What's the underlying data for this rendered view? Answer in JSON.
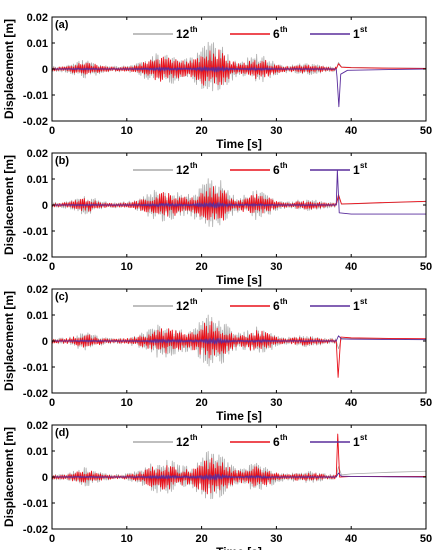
{
  "chart_data": [
    {
      "type": "line",
      "panel_label": "(a)",
      "xlabel": "Time [s]",
      "ylabel": "Displacement [m]",
      "xlim": [
        0,
        50
      ],
      "ylim": [
        -0.02,
        0.02
      ],
      "xticks": [
        "0",
        "10",
        "20",
        "30",
        "40",
        "50"
      ],
      "yticks": [
        "0.02",
        "0.01",
        "0",
        "-0.01",
        "-0.02"
      ],
      "legend_placement": "top-center",
      "series": [
        {
          "name": "12",
          "sup": "th",
          "color": "#aaaaaa",
          "peak_amplitude": 0.0105,
          "post_event": [
            [
              38.0,
              0.0
            ],
            [
              38.3,
              0.0025
            ],
            [
              38.7,
              0.0008
            ],
            [
              40,
              0.0006
            ],
            [
              45,
              0.0004
            ],
            [
              50,
              0.0003
            ]
          ]
        },
        {
          "name": "6",
          "sup": "th",
          "color": "#e8101a",
          "peak_amplitude": 0.0075,
          "post_event": [
            [
              38.0,
              0.0
            ],
            [
              38.3,
              0.002
            ],
            [
              38.7,
              0.0007
            ],
            [
              40,
              0.0005
            ],
            [
              45,
              0.0003
            ],
            [
              50,
              0.0002
            ]
          ]
        },
        {
          "name": "1",
          "sup": "st",
          "color": "#5a2d9c",
          "peak_amplitude": 0.0012,
          "post_event": [
            [
              38.0,
              0.0
            ],
            [
              38.1,
              -0.003
            ],
            [
              38.35,
              -0.0145
            ],
            [
              38.6,
              -0.002
            ],
            [
              39.5,
              -0.0005
            ],
            [
              45,
              -0.0002
            ],
            [
              50,
              0.0
            ]
          ]
        }
      ]
    },
    {
      "type": "line",
      "panel_label": "(b)",
      "xlabel": "Time [s]",
      "ylabel": "Displacement [m]",
      "xlim": [
        0,
        50
      ],
      "ylim": [
        -0.02,
        0.02
      ],
      "xticks": [
        "0",
        "10",
        "20",
        "30",
        "40",
        "50"
      ],
      "yticks": [
        "0.02",
        "0.01",
        "0",
        "-0.01",
        "-0.02"
      ],
      "legend_placement": "top-center",
      "series": [
        {
          "name": "12",
          "sup": "th",
          "color": "#aaaaaa",
          "peak_amplitude": 0.0105,
          "post_event": [
            [
              38.0,
              0.0
            ],
            [
              38.3,
              0.0035
            ],
            [
              38.7,
              0.0003
            ],
            [
              40,
              0.0004
            ],
            [
              45,
              0.0009
            ],
            [
              50,
              0.0013
            ]
          ]
        },
        {
          "name": "6",
          "sup": "th",
          "color": "#e8101a",
          "peak_amplitude": 0.0075,
          "post_event": [
            [
              38.0,
              0.0
            ],
            [
              38.3,
              0.004
            ],
            [
              38.7,
              0.0004
            ],
            [
              40,
              0.0005
            ],
            [
              45,
              0.001
            ],
            [
              50,
              0.0014
            ]
          ]
        },
        {
          "name": "1",
          "sup": "st",
          "color": "#5a2d9c",
          "peak_amplitude": 0.0012,
          "post_event": [
            [
              38.0,
              0.0
            ],
            [
              38.15,
              0.0135
            ],
            [
              38.4,
              -0.003
            ],
            [
              40,
              -0.0035
            ],
            [
              45,
              -0.0035
            ],
            [
              50,
              -0.0035
            ]
          ]
        }
      ]
    },
    {
      "type": "line",
      "panel_label": "(c)",
      "xlabel": "Time [s]",
      "ylabel": "Displacement [m]",
      "xlim": [
        0,
        50
      ],
      "ylim": [
        -0.02,
        0.02
      ],
      "xticks": [
        "0",
        "10",
        "20",
        "30",
        "40",
        "50"
      ],
      "yticks": [
        "0.02",
        "0.01",
        "0",
        "-0.01",
        "-0.02"
      ],
      "legend_placement": "top-center",
      "series": [
        {
          "name": "12",
          "sup": "th",
          "color": "#aaaaaa",
          "peak_amplitude": 0.0105,
          "post_event": [
            [
              38.0,
              0.0
            ],
            [
              38.3,
              -0.003
            ],
            [
              38.7,
              0.001
            ],
            [
              40,
              0.0009
            ],
            [
              45,
              0.0008
            ],
            [
              50,
              0.0007
            ]
          ]
        },
        {
          "name": "6",
          "sup": "th",
          "color": "#e8101a",
          "peak_amplitude": 0.0075,
          "post_event": [
            [
              38.0,
              0.0
            ],
            [
              38.25,
              -0.014
            ],
            [
              38.6,
              0.0015
            ],
            [
              40,
              0.0012
            ],
            [
              45,
              0.001
            ],
            [
              50,
              0.0009
            ]
          ]
        },
        {
          "name": "1",
          "sup": "st",
          "color": "#5a2d9c",
          "peak_amplitude": 0.0012,
          "post_event": [
            [
              38.0,
              0.0
            ],
            [
              38.3,
              0.002
            ],
            [
              38.7,
              0.0008
            ],
            [
              40,
              0.0007
            ],
            [
              45,
              0.0006
            ],
            [
              50,
              0.0005
            ]
          ]
        }
      ]
    },
    {
      "type": "line",
      "panel_label": "(d)",
      "xlabel": "Time [s]",
      "ylabel": "Displacement [m]",
      "xlim": [
        0,
        50
      ],
      "ylim": [
        -0.02,
        0.02
      ],
      "xticks": [
        "0",
        "10",
        "20",
        "30",
        "40",
        "50"
      ],
      "yticks": [
        "0.02",
        "0.01",
        "0",
        "-0.01",
        "-0.02"
      ],
      "legend_placement": "top-center",
      "series": [
        {
          "name": "12",
          "sup": "th",
          "color": "#aaaaaa",
          "peak_amplitude": 0.0105,
          "post_event": [
            [
              38.0,
              0.0
            ],
            [
              38.3,
              0.004
            ],
            [
              38.7,
              0.0008
            ],
            [
              40,
              0.0012
            ],
            [
              45,
              0.0018
            ],
            [
              50,
              0.0022
            ]
          ]
        },
        {
          "name": "6",
          "sup": "th",
          "color": "#e8101a",
          "peak_amplitude": 0.0075,
          "post_event": [
            [
              38.0,
              0.0
            ],
            [
              38.2,
              0.0165
            ],
            [
              38.45,
              0.0
            ],
            [
              40,
              0.0002
            ],
            [
              45,
              0.0002
            ],
            [
              50,
              0.0002
            ]
          ]
        },
        {
          "name": "1",
          "sup": "st",
          "color": "#5a2d9c",
          "peak_amplitude": 0.0012,
          "post_event": [
            [
              38.0,
              0.0
            ],
            [
              38.3,
              0.0015
            ],
            [
              38.7,
              0.0003
            ],
            [
              40,
              0.0002
            ],
            [
              45,
              0.0001
            ],
            [
              50,
              0.0
            ]
          ]
        }
      ]
    }
  ]
}
